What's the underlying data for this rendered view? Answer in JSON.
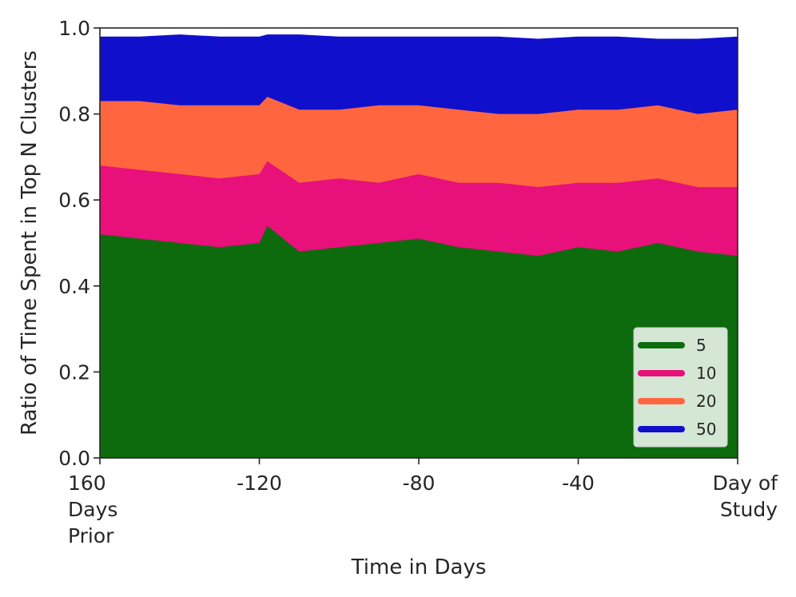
{
  "chart_data": {
    "type": "area",
    "stacked": true,
    "title": "",
    "xlabel": "Time in Days",
    "ylabel": "Ratio of Time Spent in Top N Clusters",
    "xlim": [
      -160,
      0
    ],
    "ylim": [
      0,
      1.0
    ],
    "x_ticks": [
      {
        "value": -160,
        "label": "160\nDays\nPrior"
      },
      {
        "value": -120,
        "label": "-120"
      },
      {
        "value": -80,
        "label": "-80"
      },
      {
        "value": -40,
        "label": "-40"
      },
      {
        "value": 0,
        "label": "Day of\nStudy"
      }
    ],
    "y_ticks": [
      {
        "value": 0.0,
        "label": "0.0"
      },
      {
        "value": 0.2,
        "label": "0.2"
      },
      {
        "value": 0.4,
        "label": "0.4"
      },
      {
        "value": 0.6,
        "label": "0.6"
      },
      {
        "value": 0.8,
        "label": "0.8"
      },
      {
        "value": 1.0,
        "label": "1.0"
      }
    ],
    "legend": {
      "placement": "bottom-right"
    },
    "grid": false,
    "x": [
      -160,
      -150,
      -140,
      -130,
      -120,
      -118,
      -110,
      -100,
      -90,
      -80,
      -70,
      -60,
      -50,
      -40,
      -30,
      -20,
      -10,
      0
    ],
    "series": [
      {
        "name": "5",
        "color": "#0d6b0d",
        "values": [
          0.52,
          0.51,
          0.5,
          0.49,
          0.5,
          0.54,
          0.48,
          0.49,
          0.5,
          0.51,
          0.49,
          0.48,
          0.47,
          0.49,
          0.48,
          0.5,
          0.48,
          0.47
        ]
      },
      {
        "name": "10",
        "color": "#e8107a",
        "values": [
          0.68,
          0.67,
          0.66,
          0.65,
          0.66,
          0.69,
          0.64,
          0.65,
          0.64,
          0.66,
          0.64,
          0.64,
          0.63,
          0.64,
          0.64,
          0.65,
          0.63,
          0.63
        ]
      },
      {
        "name": "20",
        "color": "#ff6640",
        "values": [
          0.83,
          0.83,
          0.82,
          0.82,
          0.82,
          0.84,
          0.81,
          0.81,
          0.82,
          0.82,
          0.81,
          0.8,
          0.8,
          0.81,
          0.81,
          0.82,
          0.8,
          0.81
        ]
      },
      {
        "name": "50",
        "color": "#1010cc",
        "values": [
          0.98,
          0.98,
          0.985,
          0.98,
          0.98,
          0.985,
          0.985,
          0.98,
          0.98,
          0.98,
          0.98,
          0.98,
          0.975,
          0.98,
          0.98,
          0.975,
          0.975,
          0.98
        ]
      }
    ]
  }
}
